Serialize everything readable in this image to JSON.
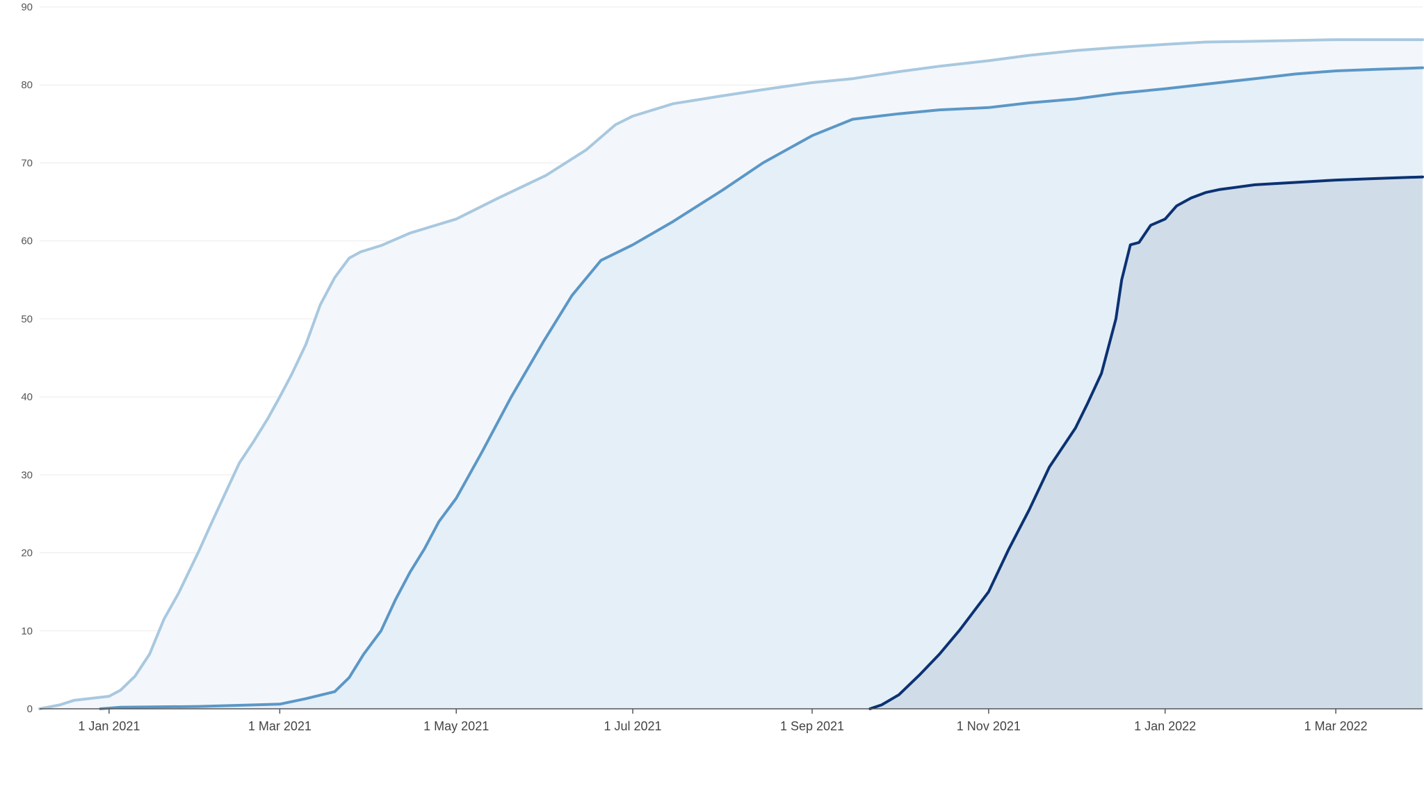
{
  "chart_data": {
    "type": "area",
    "title": "",
    "xlabel": "",
    "ylabel": "",
    "ylim": [
      0,
      90
    ],
    "xlim": [
      "2020-12-08",
      "2022-03-31"
    ],
    "grid": true,
    "y_ticks": [
      0,
      10,
      20,
      30,
      40,
      50,
      60,
      70,
      80,
      90
    ],
    "x_ticks": [
      {
        "date": "2021-01-01",
        "label": "1 Jan 2021"
      },
      {
        "date": "2021-03-01",
        "label": "1 Mar 2021"
      },
      {
        "date": "2021-05-01",
        "label": "1 May 2021"
      },
      {
        "date": "2021-07-01",
        "label": "1 Jul 2021"
      },
      {
        "date": "2021-09-01",
        "label": "1 Sep 2021"
      },
      {
        "date": "2021-11-01",
        "label": "1 Nov 2021"
      },
      {
        "date": "2022-01-01",
        "label": "1 Jan 2022"
      },
      {
        "date": "2022-03-01",
        "label": "1 Mar 2022"
      }
    ],
    "series": [
      {
        "color": "#a8c8df",
        "fill": "#f3f7fb",
        "x": [
          "2020-12-08",
          "2020-12-15",
          "2020-12-20",
          "2020-12-25",
          "2021-01-01",
          "2021-01-05",
          "2021-01-10",
          "2021-01-15",
          "2021-01-20",
          "2021-01-25",
          "2021-02-01",
          "2021-02-05",
          "2021-02-10",
          "2021-02-15",
          "2021-02-20",
          "2021-02-25",
          "2021-03-01",
          "2021-03-05",
          "2021-03-10",
          "2021-03-15",
          "2021-03-20",
          "2021-03-25",
          "2021-03-29",
          "2021-04-05",
          "2021-04-15",
          "2021-05-01",
          "2021-05-15",
          "2021-06-01",
          "2021-06-15",
          "2021-06-25",
          "2021-07-01",
          "2021-07-15",
          "2021-08-01",
          "2021-08-15",
          "2021-09-01",
          "2021-09-15",
          "2021-10-01",
          "2021-10-15",
          "2021-11-01",
          "2021-11-15",
          "2021-12-01",
          "2021-12-15",
          "2022-01-01",
          "2022-01-15",
          "2022-02-01",
          "2022-02-15",
          "2022-03-01",
          "2022-03-15",
          "2022-03-31"
        ],
        "y": [
          0,
          0.5,
          1.1,
          1.3,
          1.6,
          2.4,
          4.2,
          7.0,
          11.5,
          14.8,
          20.2,
          23.5,
          27.5,
          31.5,
          34.3,
          37.3,
          40.0,
          42.8,
          46.7,
          51.8,
          55.3,
          57.8,
          58.6,
          59.4,
          61.0,
          62.8,
          65.4,
          68.4,
          71.7,
          74.9,
          76.0,
          77.6,
          78.6,
          79.4,
          80.3,
          80.8,
          81.7,
          82.4,
          83.1,
          83.8,
          84.4,
          84.8,
          85.2,
          85.5,
          85.6,
          85.7,
          85.8,
          85.8,
          85.8
        ]
      },
      {
        "color": "#5b97c6",
        "fill": "#e5eff8",
        "x": [
          "2020-12-29",
          "2021-01-05",
          "2021-02-01",
          "2021-03-01",
          "2021-03-10",
          "2021-03-20",
          "2021-03-25",
          "2021-03-30",
          "2021-04-05",
          "2021-04-10",
          "2021-04-15",
          "2021-04-20",
          "2021-04-25",
          "2021-05-01",
          "2021-05-10",
          "2021-05-20",
          "2021-05-31",
          "2021-06-10",
          "2021-06-20",
          "2021-07-01",
          "2021-07-15",
          "2021-08-01",
          "2021-08-15",
          "2021-09-01",
          "2021-09-15",
          "2021-10-01",
          "2021-10-15",
          "2021-11-01",
          "2021-11-15",
          "2021-12-01",
          "2021-12-15",
          "2022-01-01",
          "2022-01-15",
          "2022-02-01",
          "2022-02-15",
          "2022-03-01",
          "2022-03-15",
          "2022-03-31"
        ],
        "y": [
          0,
          0.2,
          0.3,
          0.6,
          1.3,
          2.2,
          4.0,
          7.0,
          10.0,
          14.0,
          17.5,
          20.5,
          24.0,
          27.0,
          33.0,
          40.0,
          47.0,
          53.0,
          57.5,
          59.5,
          62.5,
          66.5,
          70.0,
          73.5,
          75.6,
          76.3,
          76.8,
          77.1,
          77.7,
          78.2,
          78.9,
          79.5,
          80.1,
          80.8,
          81.4,
          81.8,
          82.0,
          82.2
        ]
      },
      {
        "color": "#0b3272",
        "fill": "#d0dde9",
        "x": [
          "2021-09-21",
          "2021-09-25",
          "2021-10-01",
          "2021-10-08",
          "2021-10-15",
          "2021-10-22",
          "2021-11-01",
          "2021-11-08",
          "2021-11-15",
          "2021-11-22",
          "2021-12-01",
          "2021-12-05",
          "2021-12-10",
          "2021-12-15",
          "2021-12-17",
          "2021-12-20",
          "2021-12-23",
          "2021-12-27",
          "2022-01-01",
          "2022-01-05",
          "2022-01-10",
          "2022-01-15",
          "2022-01-20",
          "2022-02-01",
          "2022-02-15",
          "2022-03-01",
          "2022-03-15",
          "2022-03-31"
        ],
        "y": [
          0,
          0.5,
          1.8,
          4.3,
          7.0,
          10.1,
          15.0,
          20.5,
          25.5,
          31.0,
          36.0,
          39.0,
          43.0,
          50.0,
          55.0,
          59.5,
          59.8,
          62.0,
          62.8,
          64.5,
          65.5,
          66.2,
          66.6,
          67.2,
          67.5,
          67.8,
          68.0,
          68.2
        ]
      }
    ]
  }
}
